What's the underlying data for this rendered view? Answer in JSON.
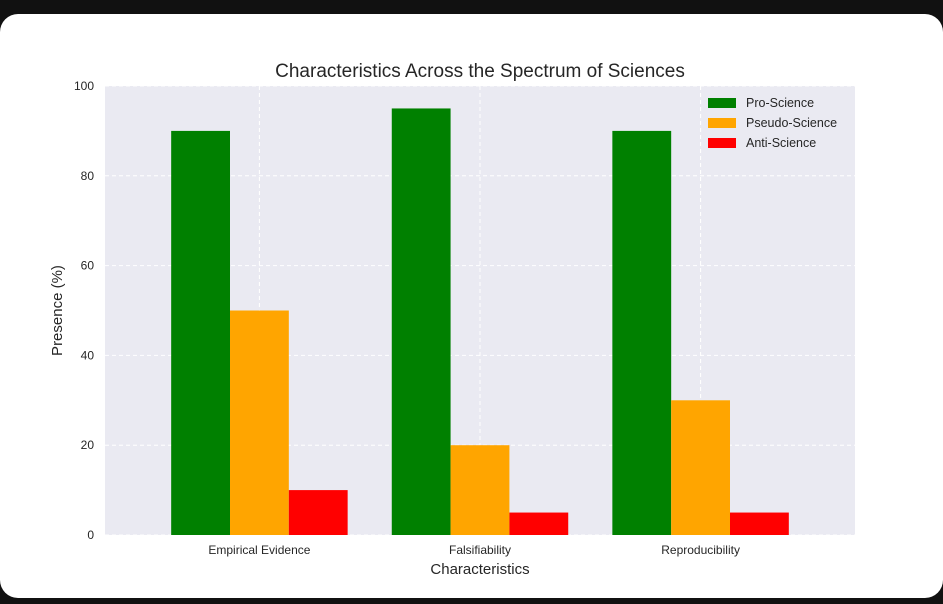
{
  "chart_data": {
    "type": "bar",
    "title": "Characteristics Across the Spectrum of Sciences",
    "xlabel": "Characteristics",
    "ylabel": "Presence (%)",
    "ylim": [
      0,
      100
    ],
    "yticks": [
      0,
      20,
      40,
      60,
      80,
      100
    ],
    "categories": [
      "Empirical Evidence",
      "Falsifiability",
      "Reproducibility"
    ],
    "series": [
      {
        "name": "Pro-Science",
        "color": "#008000",
        "values": [
          90,
          95,
          90
        ]
      },
      {
        "name": "Pseudo-Science",
        "color": "#FFA500",
        "values": [
          50,
          20,
          30
        ]
      },
      {
        "name": "Anti-Science",
        "color": "#FF0000",
        "values": [
          10,
          5,
          5
        ]
      }
    ],
    "grid": true,
    "legend_position": "top-right"
  }
}
